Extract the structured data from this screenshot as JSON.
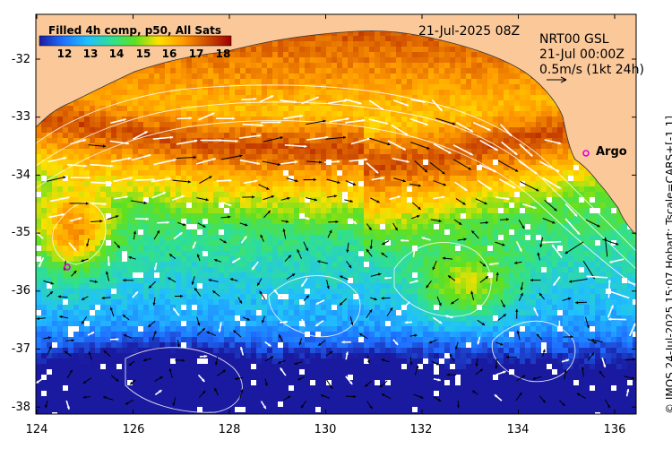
{
  "map": {
    "lon_range": [
      124,
      136.5
    ],
    "lat_range": [
      -38.1,
      -31.3
    ],
    "x_ticks": [
      "124",
      "126",
      "128",
      "130",
      "132",
      "134",
      "136"
    ],
    "y_ticks": [
      "-32",
      "-33",
      "-34",
      "-35",
      "-36",
      "-37",
      "-38"
    ],
    "land_color": "#fbc89a"
  },
  "colorbar": {
    "title": "Filled 4h comp, p50, All Sats",
    "ticks": [
      "12",
      "13",
      "14",
      "15",
      "16",
      "17",
      "18"
    ],
    "range": [
      11.5,
      18.5
    ]
  },
  "header": {
    "date": "21-Jul-2025 08Z",
    "product": "NRT00 GSL",
    "product_time": "21-Jul 00:00Z",
    "scale_label": "0.5m/s (1kt 24h)"
  },
  "argo": {
    "label": "Argo",
    "color": "#e000e0"
  },
  "credit": "© IMOS 24-Jul-2025 15:07 Hobart; Tscale=CARS+[-1 1]"
}
